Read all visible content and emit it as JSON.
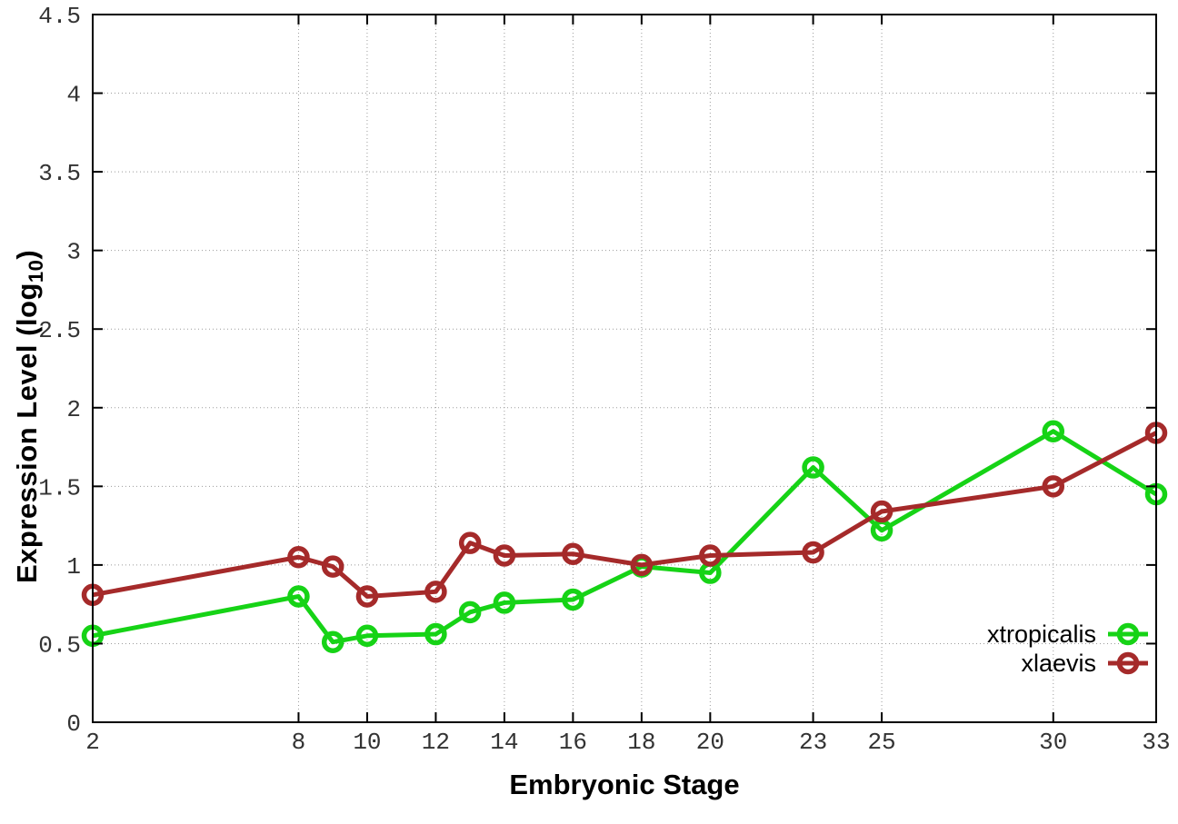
{
  "chart_data": {
    "type": "line",
    "title": "",
    "xlabel": "Embryonic Stage",
    "ylabel": "Expression Level (log10)",
    "ylabel_parts": {
      "prefix": "Expression Level (log",
      "sub": "10",
      "suffix": ")"
    },
    "x": [
      2,
      8,
      9,
      10,
      12,
      13,
      14,
      16,
      18,
      20,
      23,
      25,
      30,
      33
    ],
    "x_ticks": [
      2,
      8,
      10,
      12,
      14,
      16,
      18,
      20,
      23,
      25,
      30,
      33
    ],
    "y_ticks": [
      0,
      0.5,
      1,
      1.5,
      2,
      2.5,
      3,
      3.5,
      4,
      4.5
    ],
    "xlim": [
      2,
      33
    ],
    "ylim": [
      0,
      4.5
    ],
    "grid": true,
    "legend_position": "bottom-right",
    "series": [
      {
        "name": "xtropicalis",
        "color": "#16d316",
        "values": [
          0.55,
          0.8,
          0.51,
          0.55,
          0.56,
          0.7,
          0.76,
          0.78,
          0.99,
          0.95,
          1.62,
          1.22,
          1.85,
          1.45
        ]
      },
      {
        "name": "xlaevis",
        "color": "#a52a2a",
        "values": [
          0.81,
          1.05,
          0.99,
          0.8,
          0.83,
          1.14,
          1.06,
          1.07,
          1.0,
          1.06,
          1.08,
          1.34,
          1.5,
          1.84
        ]
      }
    ],
    "style": {
      "axis_color": "#000000",
      "grid_color": "#9b9b9b",
      "tick_label_color": "#333333",
      "legend_text_color": "#000000",
      "background": "#ffffff"
    }
  }
}
